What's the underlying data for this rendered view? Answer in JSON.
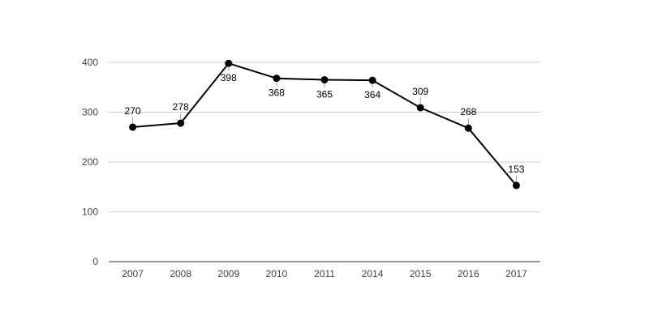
{
  "chart_data": {
    "type": "line",
    "title": "",
    "xlabel": "",
    "ylabel": "",
    "categories": [
      "2007",
      "2008",
      "2009",
      "2010",
      "2011",
      "2014",
      "2015",
      "2016",
      "2017"
    ],
    "series": [
      {
        "values": [
          270,
          278,
          398,
          368,
          365,
          364,
          309,
          268,
          153
        ]
      }
    ],
    "y_ticks": [
      0,
      100,
      200,
      300,
      400
    ],
    "ylim": [
      0,
      400
    ],
    "grid": true,
    "legend": "none",
    "data_labels": [
      "270",
      "278",
      "398",
      "368",
      "365",
      "364",
      "309",
      "268",
      "153"
    ],
    "label_position": [
      "above",
      "above",
      "below",
      "below",
      "below",
      "below",
      "above",
      "above",
      "above"
    ],
    "colors": {
      "line": "#000000",
      "marker": "#000000",
      "grid": "#cccccc",
      "axis": "#333333",
      "tick_text": "#444444"
    }
  }
}
